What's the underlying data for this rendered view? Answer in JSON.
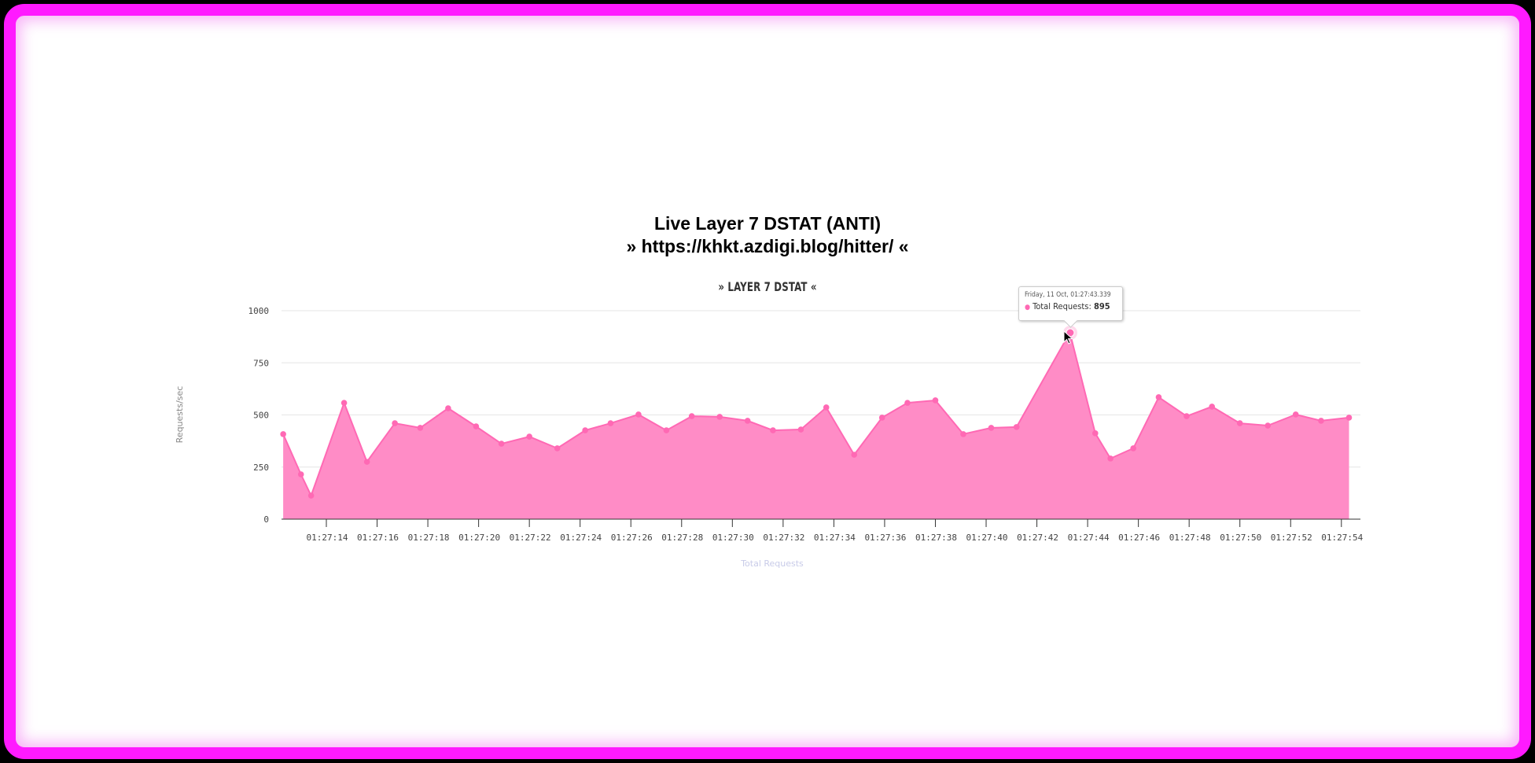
{
  "colors": {
    "frame_border": "#ff1aff",
    "page_background": "#000000",
    "panel_background": "#ffffff",
    "series_line": "#ff69b4",
    "series_fill": "#ff8cc6",
    "grid": "#e6e6e6",
    "x_axis_title": "#c8cbe8"
  },
  "header": {
    "title": "Live Layer 7 DSTAT (ANTI)",
    "target_url": "» https://khkt.azdigi.blog/hitter/ «"
  },
  "tooltip": {
    "date": "Friday, 11 Oct, 01:27:43.339",
    "series_label": "Total Requests: ",
    "value": "895"
  },
  "chart_data": {
    "type": "area",
    "title": "» LAYER 7 DSTAT «",
    "xlabel": "Total Requests",
    "ylabel": "Requests/sec",
    "ylim": [
      0,
      1000
    ],
    "y_ticks": [
      "0",
      "250",
      "500",
      "750",
      "1000"
    ],
    "grid": true,
    "legend": "none",
    "x_tick_labels": [
      "01:27:14",
      "01:27:16",
      "01:27:18",
      "01:27:20",
      "01:27:22",
      "01:27:24",
      "01:27:26",
      "01:27:28",
      "01:27:30",
      "01:27:32",
      "01:27:34",
      "01:27:36",
      "01:27:38",
      "01:27:40",
      "01:27:42",
      "01:27:44",
      "01:27:46",
      "01:27:48",
      "01:27:50",
      "01:27:52",
      "01:27:54"
    ],
    "series": [
      {
        "name": "Total Requests",
        "x_seconds_after_01_27_00": [
          12.3,
          13.0,
          13.4,
          14.7,
          15.6,
          16.7,
          17.7,
          18.8,
          19.9,
          20.9,
          22.0,
          23.1,
          24.2,
          25.2,
          26.3,
          27.4,
          28.4,
          29.5,
          30.6,
          31.6,
          32.7,
          33.7,
          34.8,
          35.9,
          36.9,
          38.0,
          39.1,
          40.2,
          41.2,
          43.3,
          44.3,
          44.9,
          45.8,
          46.8,
          47.9,
          48.9,
          50.0,
          51.1,
          52.2,
          53.2,
          54.3
        ],
        "values": [
          408,
          215,
          113,
          558,
          275,
          460,
          438,
          532,
          445,
          362,
          396,
          340,
          426,
          460,
          502,
          426,
          494,
          491,
          472,
          426,
          430,
          536,
          309,
          487,
          558,
          570,
          408,
          438,
          442,
          895,
          412,
          291,
          340,
          585,
          494,
          540,
          460,
          449,
          502,
          472,
          487
        ]
      }
    ],
    "highlighted_point": {
      "time": "01:27:43.339",
      "value": 895
    }
  }
}
